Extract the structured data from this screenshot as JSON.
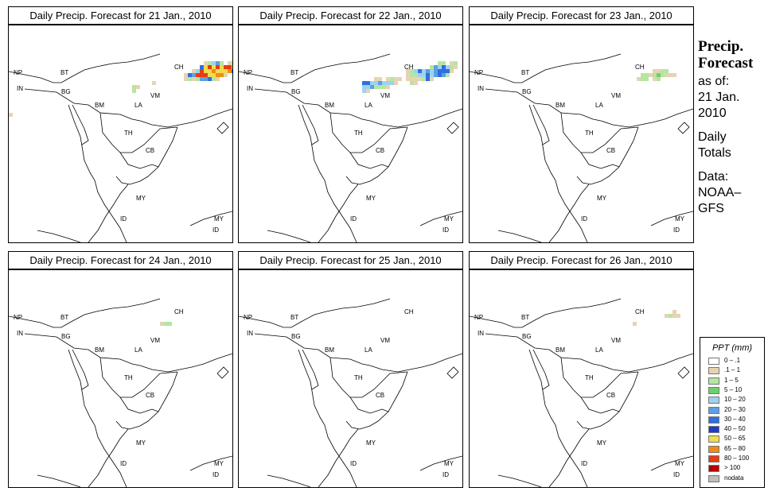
{
  "panels": [
    {
      "title": "Daily Precip. Forecast for  21 Jan., 2010",
      "intensity": 1.0
    },
    {
      "title": "Daily Precip. Forecast for  22 Jan., 2010",
      "intensity": 0.8
    },
    {
      "title": "Daily Precip. Forecast for  23 Jan., 2010",
      "intensity": 0.55
    },
    {
      "title": "Daily Precip. Forecast for  24 Jan., 2010",
      "intensity": 0.35
    },
    {
      "title": "Daily Precip. Forecast for  25 Jan., 2010",
      "intensity": 0.45
    },
    {
      "title": "Daily Precip. Forecast for  26 Jan., 2010",
      "intensity": 0.5
    }
  ],
  "country_labels": [
    "CH",
    "NP",
    "BT",
    "IN",
    "BG",
    "BM",
    "VM",
    "LA",
    "TH",
    "CB",
    "MY",
    "MY",
    "ID",
    "ID"
  ],
  "sidebar": {
    "heading1": "Precip.",
    "heading2": "Forecast",
    "as_of": "as of:",
    "date1": "21 Jan.",
    "date2": "2010",
    "totals1": "Daily",
    "totals2": "Totals",
    "data1": "Data:",
    "data2": "NOAA–",
    "data3": "GFS"
  },
  "legend": {
    "title": "PPT (mm)",
    "items": [
      {
        "label": "0 – .1",
        "color": "#ffffff"
      },
      {
        "label": ".1 – 1",
        "color": "#e6d3b3"
      },
      {
        "label": "1 – 5",
        "color": "#b4e6a0"
      },
      {
        "label": "5 – 10",
        "color": "#6ad26a"
      },
      {
        "label": "10 – 20",
        "color": "#9ed2ee"
      },
      {
        "label": "20 – 30",
        "color": "#5aa0e6"
      },
      {
        "label": "30 – 40",
        "color": "#2f6fe0"
      },
      {
        "label": "40 – 50",
        "color": "#1e3cc8"
      },
      {
        "label": "50 – 65",
        "color": "#f0dc50"
      },
      {
        "label": "65 – 80",
        "color": "#f08c14"
      },
      {
        "label": "80 – 100",
        "color": "#e63c14"
      },
      {
        "label": "> 100",
        "color": "#b40000"
      },
      {
        "label": "nodata",
        "color": "#bebebe"
      }
    ]
  }
}
